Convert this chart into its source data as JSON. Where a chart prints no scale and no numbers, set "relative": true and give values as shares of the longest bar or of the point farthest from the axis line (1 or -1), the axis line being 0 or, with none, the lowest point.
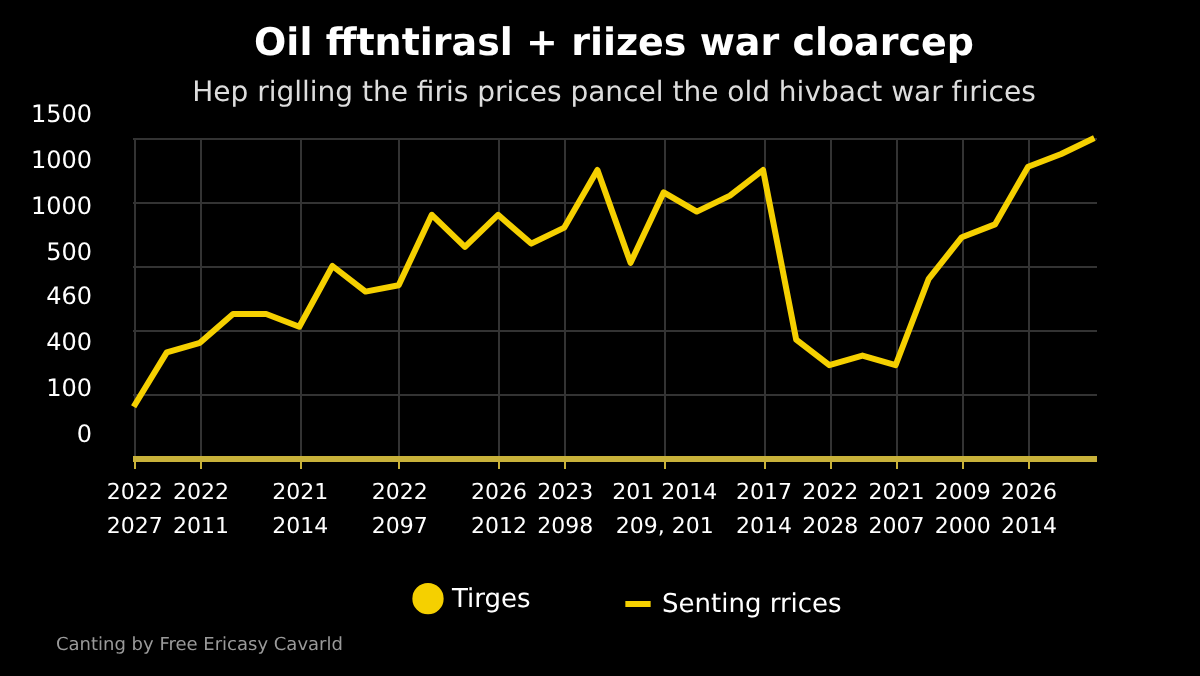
{
  "chart_data": {
    "type": "line",
    "title": "Oil fftntirasl + riizes war cloarcep",
    "subtitle": "Hep riglling the firis prices pancel the old hivbact war fırices",
    "annotations": [
      "Canting by Free Ericasy Cavarld",
      "0",
      "100",
      "400",
      "460",
      "500",
      "1000",
      "1000",
      "1500"
    ],
    "relative": true,
    "categories": [
      "2022\n2027",
      null,
      "2022\n2011",
      null,
      null,
      "2021\n2014",
      null,
      null,
      "2022\n2097",
      null,
      null,
      "2026\n2012",
      null,
      "2023\n2098",
      null,
      null,
      "201 2014\n209, 201",
      null,
      null,
      "2017\n2014",
      null,
      "2022\n2028",
      null,
      "2021\n2007",
      null,
      "2009\n2000",
      null,
      "2026\n2014",
      null,
      null
    ],
    "series": [
      {
        "name": "Tirges",
        "type": "scatter",
        "color": "#f5d000",
        "values": [
          null,
          null,
          null,
          null,
          null,
          null,
          null,
          null,
          null,
          null,
          null,
          null,
          null,
          null,
          null,
          null,
          null,
          null,
          null,
          null,
          null,
          null,
          null,
          null,
          null,
          null,
          null,
          null,
          null,
          null
        ]
      },
      {
        "name": "Senting rrices",
        "color": "#f5d000",
        "values": [
          0.16,
          0.33,
          0.36,
          0.45,
          0.45,
          0.41,
          0.6,
          0.52,
          0.54,
          0.76,
          0.66,
          0.76,
          0.67,
          0.72,
          0.9,
          0.61,
          0.83,
          0.77,
          0.82,
          0.9,
          0.37,
          0.29,
          0.32,
          0.29,
          0.56,
          0.69,
          0.73,
          0.91,
          0.95,
          1
        ]
      }
    ],
    "grid": true,
    "legend": "bottom",
    "line_style": "solid"
  }
}
